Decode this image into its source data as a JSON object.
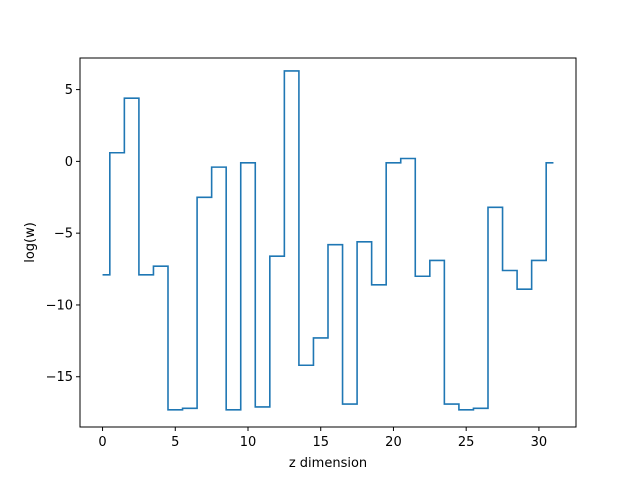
{
  "chart_data": {
    "type": "line",
    "drawstyle": "steps-mid",
    "xlabel": "z dimension",
    "ylabel": "log(w)",
    "xlim": [
      -1.55,
      32.55
    ],
    "ylim": [
      -18.5,
      7.2
    ],
    "xticks": [
      0,
      5,
      10,
      15,
      20,
      25,
      30
    ],
    "yticks": [
      -15,
      -10,
      -5,
      0,
      5
    ],
    "xtick_labels": [
      "0",
      "5",
      "10",
      "15",
      "20",
      "25",
      "30"
    ],
    "ytick_labels": [
      "−15",
      "−10",
      "−5",
      "0",
      "5"
    ],
    "grid": false,
    "series": [
      {
        "color": "#1f77b4",
        "x": [
          0,
          1,
          2,
          3,
          4,
          5,
          6,
          7,
          8,
          9,
          10,
          11,
          12,
          13,
          14,
          15,
          16,
          17,
          18,
          19,
          20,
          21,
          22,
          23,
          24,
          25,
          26,
          27,
          28,
          29,
          30,
          31
        ],
        "y": [
          -7.9,
          0.6,
          4.4,
          -7.9,
          -7.3,
          -17.3,
          -17.2,
          -2.5,
          -0.4,
          -17.3,
          -0.1,
          -17.1,
          -6.6,
          6.3,
          -14.2,
          -12.3,
          -5.8,
          -16.9,
          -5.6,
          -8.6,
          -0.1,
          0.2,
          -8.0,
          -6.9,
          -16.9,
          -17.3,
          -17.2,
          -3.2,
          -7.6,
          -8.9,
          -6.9,
          -0.1
        ]
      }
    ]
  }
}
